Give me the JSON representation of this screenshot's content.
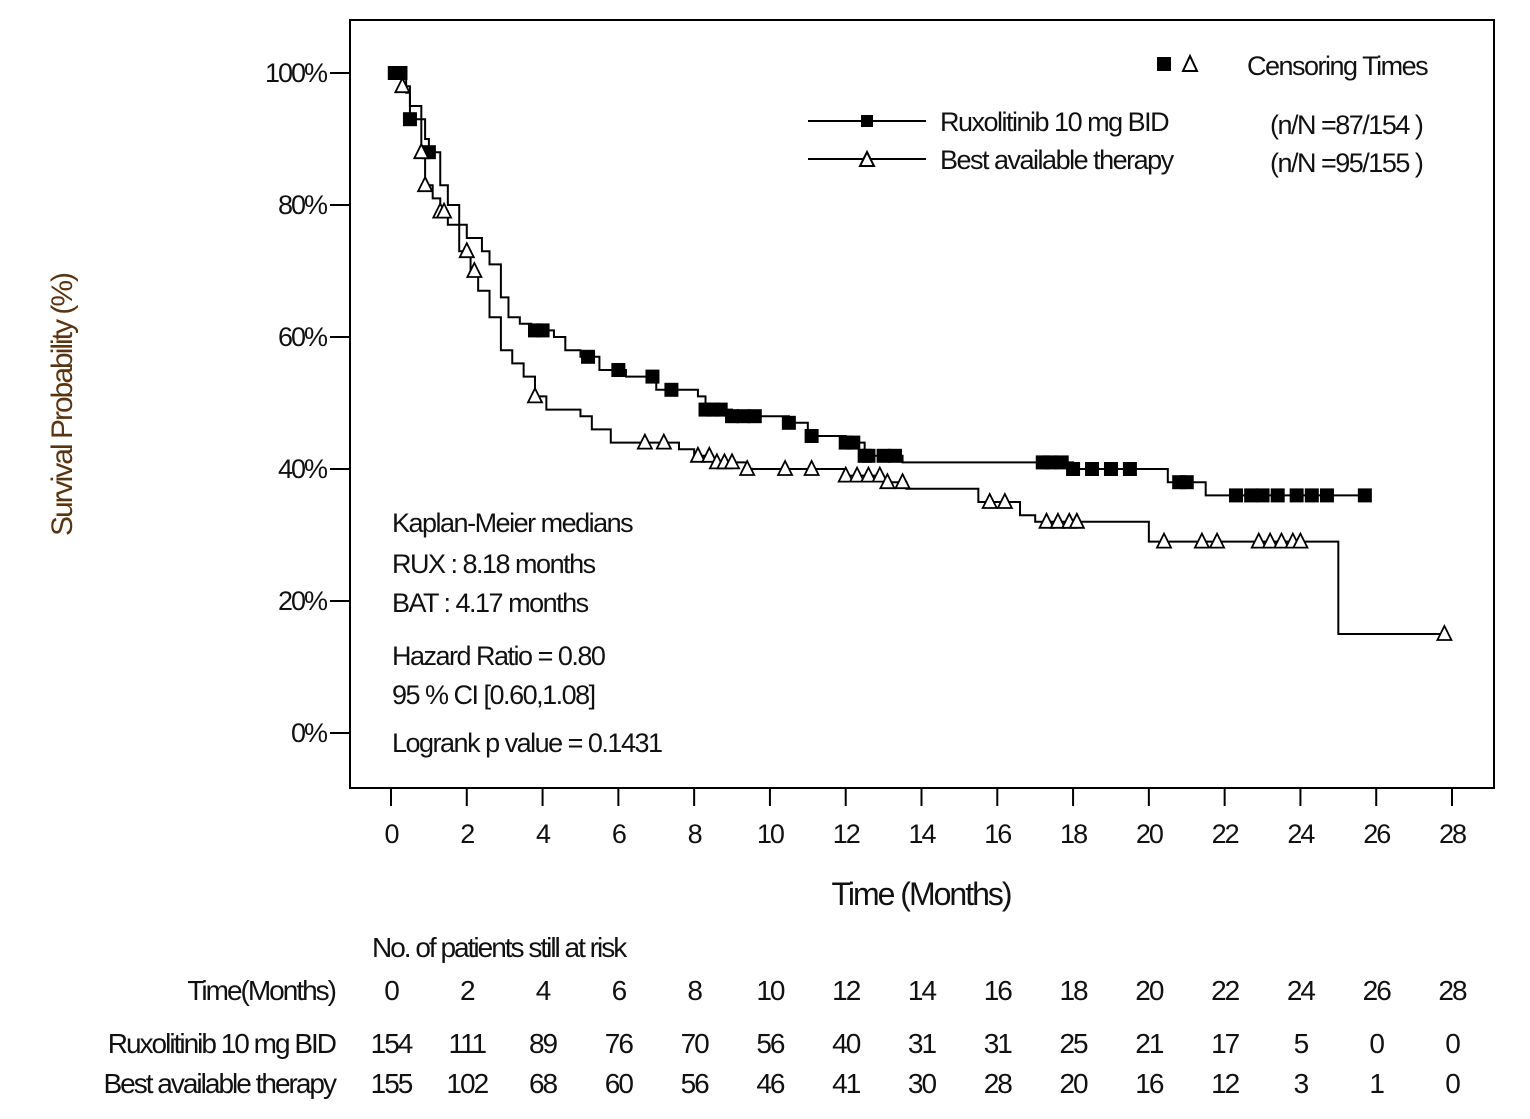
{
  "chart_data": {
    "type": "line",
    "subtype": "kaplan-meier step",
    "xlabel": "Time (Months)",
    "ylabel": "Survival Probability (%)",
    "xlim": [
      0,
      28
    ],
    "ylim": [
      0,
      100
    ],
    "xticks": [
      "0",
      "2",
      "4",
      "6",
      "8",
      "10",
      "12",
      "14",
      "16",
      "18",
      "20",
      "22",
      "24",
      "26",
      "28"
    ],
    "yticks": [
      "0%",
      "20%",
      "40%",
      "60%",
      "80%",
      "100%"
    ],
    "grid": false,
    "legend": {
      "placement": "top-right",
      "censor_label": "Censoring Times",
      "entries": [
        {
          "name": "Ruxolitinib 10 mg BID",
          "count": "(n/N =87/154  )",
          "marker": "square"
        },
        {
          "name": "Best available therapy",
          "count": "(n/N =95/155  )",
          "marker": "triangle"
        }
      ]
    },
    "annotations": [
      "Kaplan-Meier medians",
      "RUX : 8.18 months",
      "BAT : 4.17 months",
      "Hazard Ratio =   0.80",
      "95 % CI [0.60,1.08]",
      "Logrank p value = 0.1431"
    ],
    "series": [
      {
        "name": "Ruxolitinib 10 mg BID",
        "marker": "square",
        "steps": [
          [
            0,
            100
          ],
          [
            0.4,
            97
          ],
          [
            0.5,
            93
          ],
          [
            0.9,
            90
          ],
          [
            1.0,
            88
          ],
          [
            1.3,
            83
          ],
          [
            1.5,
            80
          ],
          [
            1.8,
            77
          ],
          [
            2.0,
            75
          ],
          [
            2.4,
            73
          ],
          [
            2.6,
            71
          ],
          [
            2.9,
            66
          ],
          [
            3.1,
            63
          ],
          [
            3.4,
            62
          ],
          [
            3.7,
            61
          ],
          [
            4.3,
            60
          ],
          [
            4.6,
            58
          ],
          [
            5.0,
            57
          ],
          [
            5.5,
            55
          ],
          [
            6.2,
            54
          ],
          [
            7.0,
            52
          ],
          [
            8.1,
            51
          ],
          [
            8.3,
            49
          ],
          [
            9.0,
            48
          ],
          [
            10.5,
            47
          ],
          [
            11.0,
            45
          ],
          [
            12.0,
            44
          ],
          [
            12.5,
            42
          ],
          [
            13.5,
            41
          ],
          [
            17.0,
            41
          ],
          [
            18.0,
            40
          ],
          [
            20.5,
            38
          ],
          [
            21.5,
            36
          ],
          [
            25.7,
            36
          ]
        ],
        "censored_times": [
          0.1,
          0.25,
          0.5,
          1.0,
          3.8,
          4.0,
          5.2,
          6.0,
          6.9,
          7.4,
          8.3,
          8.5,
          8.7,
          9.0,
          9.3,
          9.6,
          10.5,
          11.1,
          12.0,
          12.2,
          12.5,
          12.6,
          13.0,
          13.3,
          17.2,
          17.4,
          17.7,
          18.0,
          18.5,
          19.0,
          19.5,
          20.8,
          21.0,
          22.3,
          22.7,
          23.0,
          23.4,
          23.9,
          24.3,
          24.7,
          25.7
        ]
      },
      {
        "name": "Best available therapy",
        "marker": "triangle",
        "steps": [
          [
            0,
            100
          ],
          [
            0.3,
            98
          ],
          [
            0.5,
            95
          ],
          [
            0.8,
            88
          ],
          [
            0.9,
            83
          ],
          [
            1.1,
            81
          ],
          [
            1.3,
            79
          ],
          [
            1.5,
            77
          ],
          [
            1.8,
            73
          ],
          [
            2.1,
            70
          ],
          [
            2.3,
            67
          ],
          [
            2.6,
            63
          ],
          [
            2.9,
            58
          ],
          [
            3.2,
            56
          ],
          [
            3.5,
            54
          ],
          [
            3.8,
            51
          ],
          [
            4.1,
            49
          ],
          [
            5.0,
            48
          ],
          [
            5.3,
            46
          ],
          [
            5.8,
            44
          ],
          [
            7.6,
            43
          ],
          [
            8.0,
            42
          ],
          [
            8.5,
            41
          ],
          [
            9.4,
            40
          ],
          [
            12.0,
            39
          ],
          [
            13.0,
            38
          ],
          [
            13.6,
            37
          ],
          [
            15.5,
            35
          ],
          [
            16.6,
            33
          ],
          [
            17.0,
            32
          ],
          [
            20.0,
            29
          ],
          [
            25.0,
            29
          ],
          [
            25.0,
            15
          ],
          [
            27.8,
            15
          ]
        ],
        "censored_times": [
          0.3,
          0.8,
          0.9,
          1.3,
          1.4,
          2.0,
          2.2,
          3.8,
          6.7,
          7.2,
          8.1,
          8.4,
          8.6,
          8.8,
          9.0,
          9.4,
          10.4,
          11.1,
          12.0,
          12.3,
          12.6,
          12.9,
          13.1,
          13.5,
          15.8,
          16.2,
          17.3,
          17.6,
          17.9,
          18.1,
          20.4,
          21.4,
          21.8,
          22.9,
          23.2,
          23.5,
          23.8,
          24.0,
          27.8
        ]
      }
    ],
    "risk_table": {
      "title": "No. of patients still at risk",
      "time_label": "Time(Months)",
      "times": [
        "0",
        "2",
        "4",
        "6",
        "8",
        "10",
        "12",
        "14",
        "16",
        "18",
        "20",
        "22",
        "24",
        "26",
        "28"
      ],
      "rows": [
        {
          "label": "Ruxolitinib 10 mg BID",
          "values": [
            "154",
            "111",
            "89",
            "76",
            "70",
            "56",
            "40",
            "31",
            "31",
            "25",
            "21",
            "17",
            "5",
            "0",
            "0"
          ]
        },
        {
          "label": "Best available therapy",
          "values": [
            "155",
            "102",
            "68",
            "60",
            "56",
            "46",
            "41",
            "30",
            "28",
            "20",
            "16",
            "12",
            "3",
            "1",
            "0"
          ]
        }
      ]
    },
    "colors": {
      "lines": "#000000",
      "ylabel": "#5a3410"
    }
  }
}
